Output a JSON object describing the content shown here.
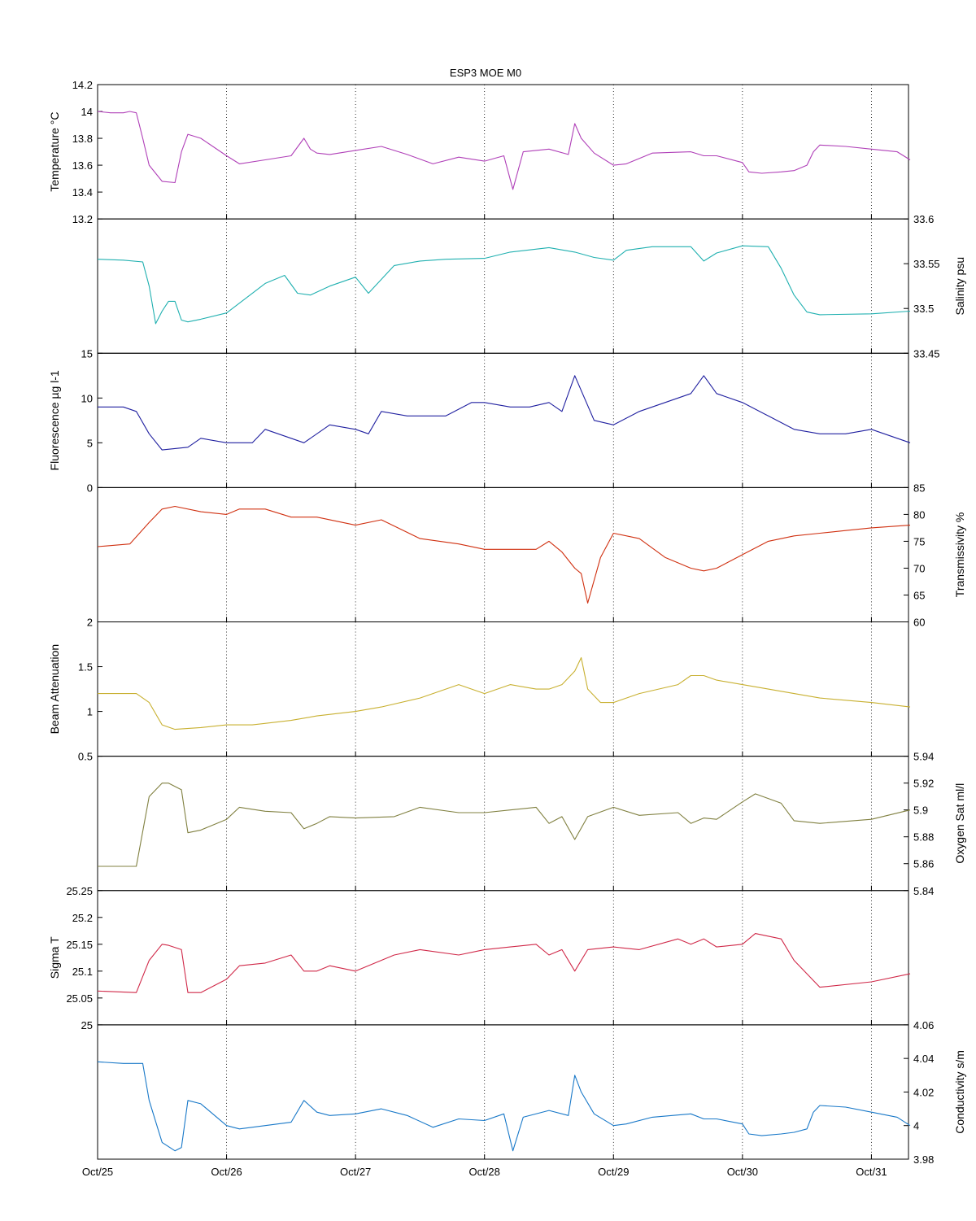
{
  "figure_title": "ESP3 MOE   M0",
  "x_tick_labels": [
    "Oct/25",
    "Oct/26",
    "Oct/27",
    "Oct/28",
    "Oct/29",
    "Oct/30",
    "Oct/31"
  ],
  "chart_data": [
    {
      "type": "line",
      "series": [
        {
          "name": "Temperature",
          "color": "#b040b8",
          "x": [
            0,
            0.1,
            0.2,
            0.25,
            0.3,
            0.35,
            0.4,
            0.5,
            0.6,
            0.65,
            0.7,
            0.8,
            1.0,
            1.1,
            1.3,
            1.5,
            1.6,
            1.65,
            1.7,
            1.8,
            2.0,
            2.2,
            2.4,
            2.6,
            2.8,
            3.0,
            3.15,
            3.22,
            3.3,
            3.5,
            3.65,
            3.7,
            3.75,
            3.85,
            4.0,
            4.1,
            4.3,
            4.6,
            4.7,
            4.8,
            5.0,
            5.05,
            5.15,
            5.3,
            5.4,
            5.5,
            5.55,
            5.6,
            5.8,
            6.0,
            6.2,
            6.3
          ],
          "y": [
            14.0,
            13.99,
            13.99,
            14.0,
            13.99,
            13.8,
            13.6,
            13.48,
            13.47,
            13.7,
            13.83,
            13.8,
            13.67,
            13.61,
            13.64,
            13.67,
            13.8,
            13.72,
            13.69,
            13.68,
            13.71,
            13.74,
            13.68,
            13.61,
            13.66,
            13.63,
            13.67,
            13.42,
            13.7,
            13.72,
            13.68,
            13.91,
            13.8,
            13.69,
            13.6,
            13.61,
            13.69,
            13.7,
            13.67,
            13.67,
            13.62,
            13.55,
            13.54,
            13.55,
            13.56,
            13.6,
            13.7,
            13.75,
            13.74,
            13.72,
            13.7,
            13.64
          ]
        }
      ],
      "ylim": [
        13.2,
        14.2
      ],
      "yticks": [
        "13.2",
        "13.4",
        "13.6",
        "13.8",
        "14",
        "14.2"
      ],
      "yticks_values": [
        13.2,
        13.4,
        13.6,
        13.8,
        14.0,
        14.2
      ],
      "ylabel": "Temperature °C",
      "axis_side": "left"
    },
    {
      "type": "line",
      "series": [
        {
          "name": "Salinity",
          "color": "#20b0b0",
          "x": [
            0,
            0.2,
            0.35,
            0.4,
            0.45,
            0.5,
            0.55,
            0.6,
            0.65,
            0.7,
            0.8,
            1.0,
            1.3,
            1.45,
            1.55,
            1.65,
            1.8,
            2.0,
            2.1,
            2.3,
            2.5,
            2.7,
            3.0,
            3.2,
            3.5,
            3.7,
            3.85,
            4.0,
            4.1,
            4.3,
            4.6,
            4.7,
            4.8,
            5.0,
            5.2,
            5.3,
            5.4,
            5.5,
            5.6,
            6.0,
            6.3
          ],
          "y": [
            33.555,
            33.554,
            33.552,
            33.525,
            33.483,
            33.497,
            33.508,
            33.508,
            33.487,
            33.485,
            33.488,
            33.495,
            33.528,
            33.537,
            33.517,
            33.515,
            33.525,
            33.535,
            33.517,
            33.548,
            33.553,
            33.555,
            33.556,
            33.563,
            33.568,
            33.563,
            33.557,
            33.554,
            33.565,
            33.569,
            33.569,
            33.553,
            33.562,
            33.57,
            33.569,
            33.545,
            33.515,
            33.496,
            33.493,
            33.494,
            33.497
          ]
        }
      ],
      "ylim": [
        33.45,
        33.6
      ],
      "yticks": [
        "33.45",
        "33.5",
        "33.55",
        "33.6"
      ],
      "yticks_values": [
        33.45,
        33.5,
        33.55,
        33.6
      ],
      "ylabel": "Salinity psu",
      "axis_side": "right"
    },
    {
      "type": "line",
      "series": [
        {
          "name": "Fluorescence",
          "color": "#2020a0",
          "x": [
            0,
            0.2,
            0.3,
            0.4,
            0.5,
            0.7,
            0.8,
            1.0,
            1.2,
            1.3,
            1.5,
            1.6,
            1.8,
            2.0,
            2.1,
            2.2,
            2.4,
            2.7,
            2.9,
            3.0,
            3.2,
            3.35,
            3.5,
            3.6,
            3.7,
            3.85,
            4.0,
            4.2,
            4.5,
            4.6,
            4.7,
            4.8,
            5.0,
            5.2,
            5.4,
            5.6,
            5.8,
            6.0,
            6.2,
            6.3
          ],
          "y": [
            9,
            9,
            8.5,
            6,
            4.2,
            4.5,
            5.5,
            5,
            5,
            6.5,
            5.5,
            5,
            7,
            6.5,
            6,
            8.5,
            8,
            8,
            9.5,
            9.5,
            9,
            9,
            9.5,
            8.5,
            12.5,
            7.5,
            7,
            8.5,
            10,
            10.5,
            12.5,
            10.5,
            9.5,
            8,
            6.5,
            6,
            6,
            6.5,
            5.5,
            5
          ]
        }
      ],
      "ylim": [
        0,
        15
      ],
      "yticks": [
        "0",
        "5",
        "10",
        "15"
      ],
      "yticks_values": [
        0,
        5,
        10,
        15
      ],
      "ylabel": "Fluorescence µg l-1",
      "axis_side": "left"
    },
    {
      "type": "line",
      "series": [
        {
          "name": "Transmissivity",
          "color": "#d03010",
          "x": [
            0,
            0.25,
            0.4,
            0.5,
            0.6,
            0.8,
            1.0,
            1.1,
            1.3,
            1.5,
            1.7,
            2.0,
            2.2,
            2.5,
            2.8,
            3.0,
            3.2,
            3.4,
            3.5,
            3.6,
            3.7,
            3.75,
            3.8,
            3.9,
            4.0,
            4.2,
            4.4,
            4.6,
            4.7,
            4.8,
            5.0,
            5.2,
            5.4,
            5.6,
            5.8,
            6.0,
            6.3
          ],
          "y": [
            74,
            74.5,
            78.5,
            81,
            81.5,
            80.5,
            80,
            81,
            81,
            79.5,
            79.5,
            78,
            79,
            75.5,
            74.5,
            73.5,
            73.5,
            73.5,
            75,
            73,
            70,
            69,
            63.5,
            72,
            76.5,
            75.5,
            72,
            70,
            69.5,
            70,
            72.5,
            75,
            76,
            76.5,
            77,
            77.5,
            78
          ]
        }
      ],
      "ylim": [
        60,
        85
      ],
      "yticks": [
        "60",
        "65",
        "70",
        "75",
        "80",
        "85"
      ],
      "yticks_values": [
        60,
        65,
        70,
        75,
        80,
        85
      ],
      "ylabel": "Transmissivity %",
      "axis_side": "right"
    },
    {
      "type": "line",
      "series": [
        {
          "name": "Beam Attenuation",
          "color": "#c8b030",
          "x": [
            0,
            0.3,
            0.4,
            0.5,
            0.6,
            0.8,
            1.0,
            1.2,
            1.5,
            1.7,
            2.0,
            2.2,
            2.5,
            2.8,
            3.0,
            3.2,
            3.4,
            3.5,
            3.6,
            3.7,
            3.75,
            3.8,
            3.9,
            4.0,
            4.2,
            4.5,
            4.6,
            4.7,
            4.8,
            5.0,
            5.2,
            5.4,
            5.6,
            6.0,
            6.3
          ],
          "y": [
            1.2,
            1.2,
            1.1,
            0.85,
            0.8,
            0.82,
            0.85,
            0.85,
            0.9,
            0.95,
            1.0,
            1.05,
            1.15,
            1.3,
            1.2,
            1.3,
            1.25,
            1.25,
            1.3,
            1.45,
            1.6,
            1.25,
            1.1,
            1.1,
            1.2,
            1.3,
            1.4,
            1.4,
            1.35,
            1.3,
            1.25,
            1.2,
            1.15,
            1.1,
            1.05
          ]
        }
      ],
      "ylim": [
        0.5,
        2
      ],
      "yticks": [
        "0.5",
        "1",
        "1.5",
        "2"
      ],
      "yticks_values": [
        0.5,
        1.0,
        1.5,
        2.0
      ],
      "ylabel": "Beam Attenuation",
      "axis_side": "left"
    },
    {
      "type": "line",
      "series": [
        {
          "name": "Oxygen Sat",
          "color": "#808040",
          "x": [
            0,
            0.3,
            0.4,
            0.5,
            0.55,
            0.65,
            0.7,
            0.8,
            1.0,
            1.1,
            1.3,
            1.5,
            1.6,
            1.7,
            1.8,
            2.0,
            2.3,
            2.5,
            2.8,
            3.0,
            3.2,
            3.4,
            3.5,
            3.6,
            3.7,
            3.8,
            4.0,
            4.2,
            4.5,
            4.6,
            4.7,
            4.8,
            5.0,
            5.1,
            5.3,
            5.4,
            5.6,
            6.0,
            6.3
          ],
          "y": [
            5.858,
            5.858,
            5.91,
            5.92,
            5.92,
            5.915,
            5.883,
            5.885,
            5.893,
            5.902,
            5.899,
            5.898,
            5.886,
            5.89,
            5.895,
            5.894,
            5.895,
            5.902,
            5.898,
            5.898,
            5.9,
            5.902,
            5.89,
            5.895,
            5.878,
            5.895,
            5.902,
            5.896,
            5.898,
            5.89,
            5.894,
            5.893,
            5.906,
            5.912,
            5.905,
            5.892,
            5.89,
            5.893,
            5.9
          ]
        }
      ],
      "ylim": [
        5.84,
        5.94
      ],
      "yticks": [
        "5.84",
        "5.86",
        "5.88",
        "5.9",
        "5.92",
        "5.94"
      ],
      "yticks_values": [
        5.84,
        5.86,
        5.88,
        5.9,
        5.92,
        5.94
      ],
      "ylabel": "Oxygen Sat ml/l",
      "axis_side": "right"
    },
    {
      "type": "line",
      "series": [
        {
          "name": "Sigma T",
          "color": "#d02848",
          "x": [
            0,
            0.3,
            0.4,
            0.5,
            0.55,
            0.65,
            0.7,
            0.8,
            1.0,
            1.1,
            1.3,
            1.5,
            1.6,
            1.7,
            1.8,
            2.0,
            2.3,
            2.5,
            2.8,
            3.0,
            3.2,
            3.4,
            3.5,
            3.6,
            3.7,
            3.8,
            4.0,
            4.2,
            4.5,
            4.6,
            4.7,
            4.8,
            5.0,
            5.1,
            5.3,
            5.4,
            5.6,
            6.0,
            6.3
          ],
          "y": [
            25.063,
            25.06,
            25.12,
            25.15,
            25.148,
            25.14,
            25.06,
            25.06,
            25.085,
            25.11,
            25.115,
            25.13,
            25.1,
            25.1,
            25.11,
            25.1,
            25.13,
            25.14,
            25.13,
            25.14,
            25.145,
            25.15,
            25.13,
            25.14,
            25.1,
            25.14,
            25.145,
            25.14,
            25.16,
            25.15,
            25.16,
            25.145,
            25.15,
            25.17,
            25.16,
            25.12,
            25.07,
            25.08,
            25.095
          ]
        }
      ],
      "ylim": [
        25,
        25.25
      ],
      "yticks": [
        "25",
        "25.05",
        "25.1",
        "25.15",
        "25.2",
        "25.25"
      ],
      "yticks_values": [
        25.0,
        25.05,
        25.1,
        25.15,
        25.2,
        25.25
      ],
      "ylabel": "Sigma T",
      "axis_side": "left"
    },
    {
      "type": "line",
      "series": [
        {
          "name": "Conductivity",
          "color": "#1878c8",
          "x": [
            0,
            0.2,
            0.35,
            0.4,
            0.5,
            0.6,
            0.65,
            0.7,
            0.8,
            1.0,
            1.1,
            1.3,
            1.5,
            1.6,
            1.7,
            1.8,
            2.0,
            2.2,
            2.4,
            2.6,
            2.8,
            3.0,
            3.15,
            3.22,
            3.3,
            3.5,
            3.65,
            3.7,
            3.75,
            3.85,
            4.0,
            4.1,
            4.3,
            4.6,
            4.7,
            4.8,
            5.0,
            5.05,
            5.15,
            5.3,
            5.4,
            5.5,
            5.55,
            5.6,
            5.8,
            6.0,
            6.2,
            6.3
          ],
          "y": [
            4.038,
            4.037,
            4.037,
            4.015,
            3.99,
            3.985,
            3.987,
            4.015,
            4.013,
            4.0,
            3.998,
            4.0,
            4.002,
            4.015,
            4.008,
            4.006,
            4.007,
            4.01,
            4.006,
            3.999,
            4.004,
            4.003,
            4.007,
            3.985,
            4.005,
            4.009,
            4.006,
            4.03,
            4.02,
            4.007,
            4.0,
            4.001,
            4.005,
            4.007,
            4.004,
            4.004,
            4.001,
            3.995,
            3.994,
            3.995,
            3.996,
            3.998,
            4.008,
            4.012,
            4.011,
            4.008,
            4.005,
            4.0
          ]
        }
      ],
      "ylim": [
        3.98,
        4.06
      ],
      "yticks": [
        "3.98",
        "4",
        "4.02",
        "4.04",
        "4.06"
      ],
      "yticks_values": [
        3.98,
        4.0,
        4.02,
        4.04,
        4.06
      ],
      "ylabel": "Conductivity s/m",
      "axis_side": "right"
    }
  ]
}
